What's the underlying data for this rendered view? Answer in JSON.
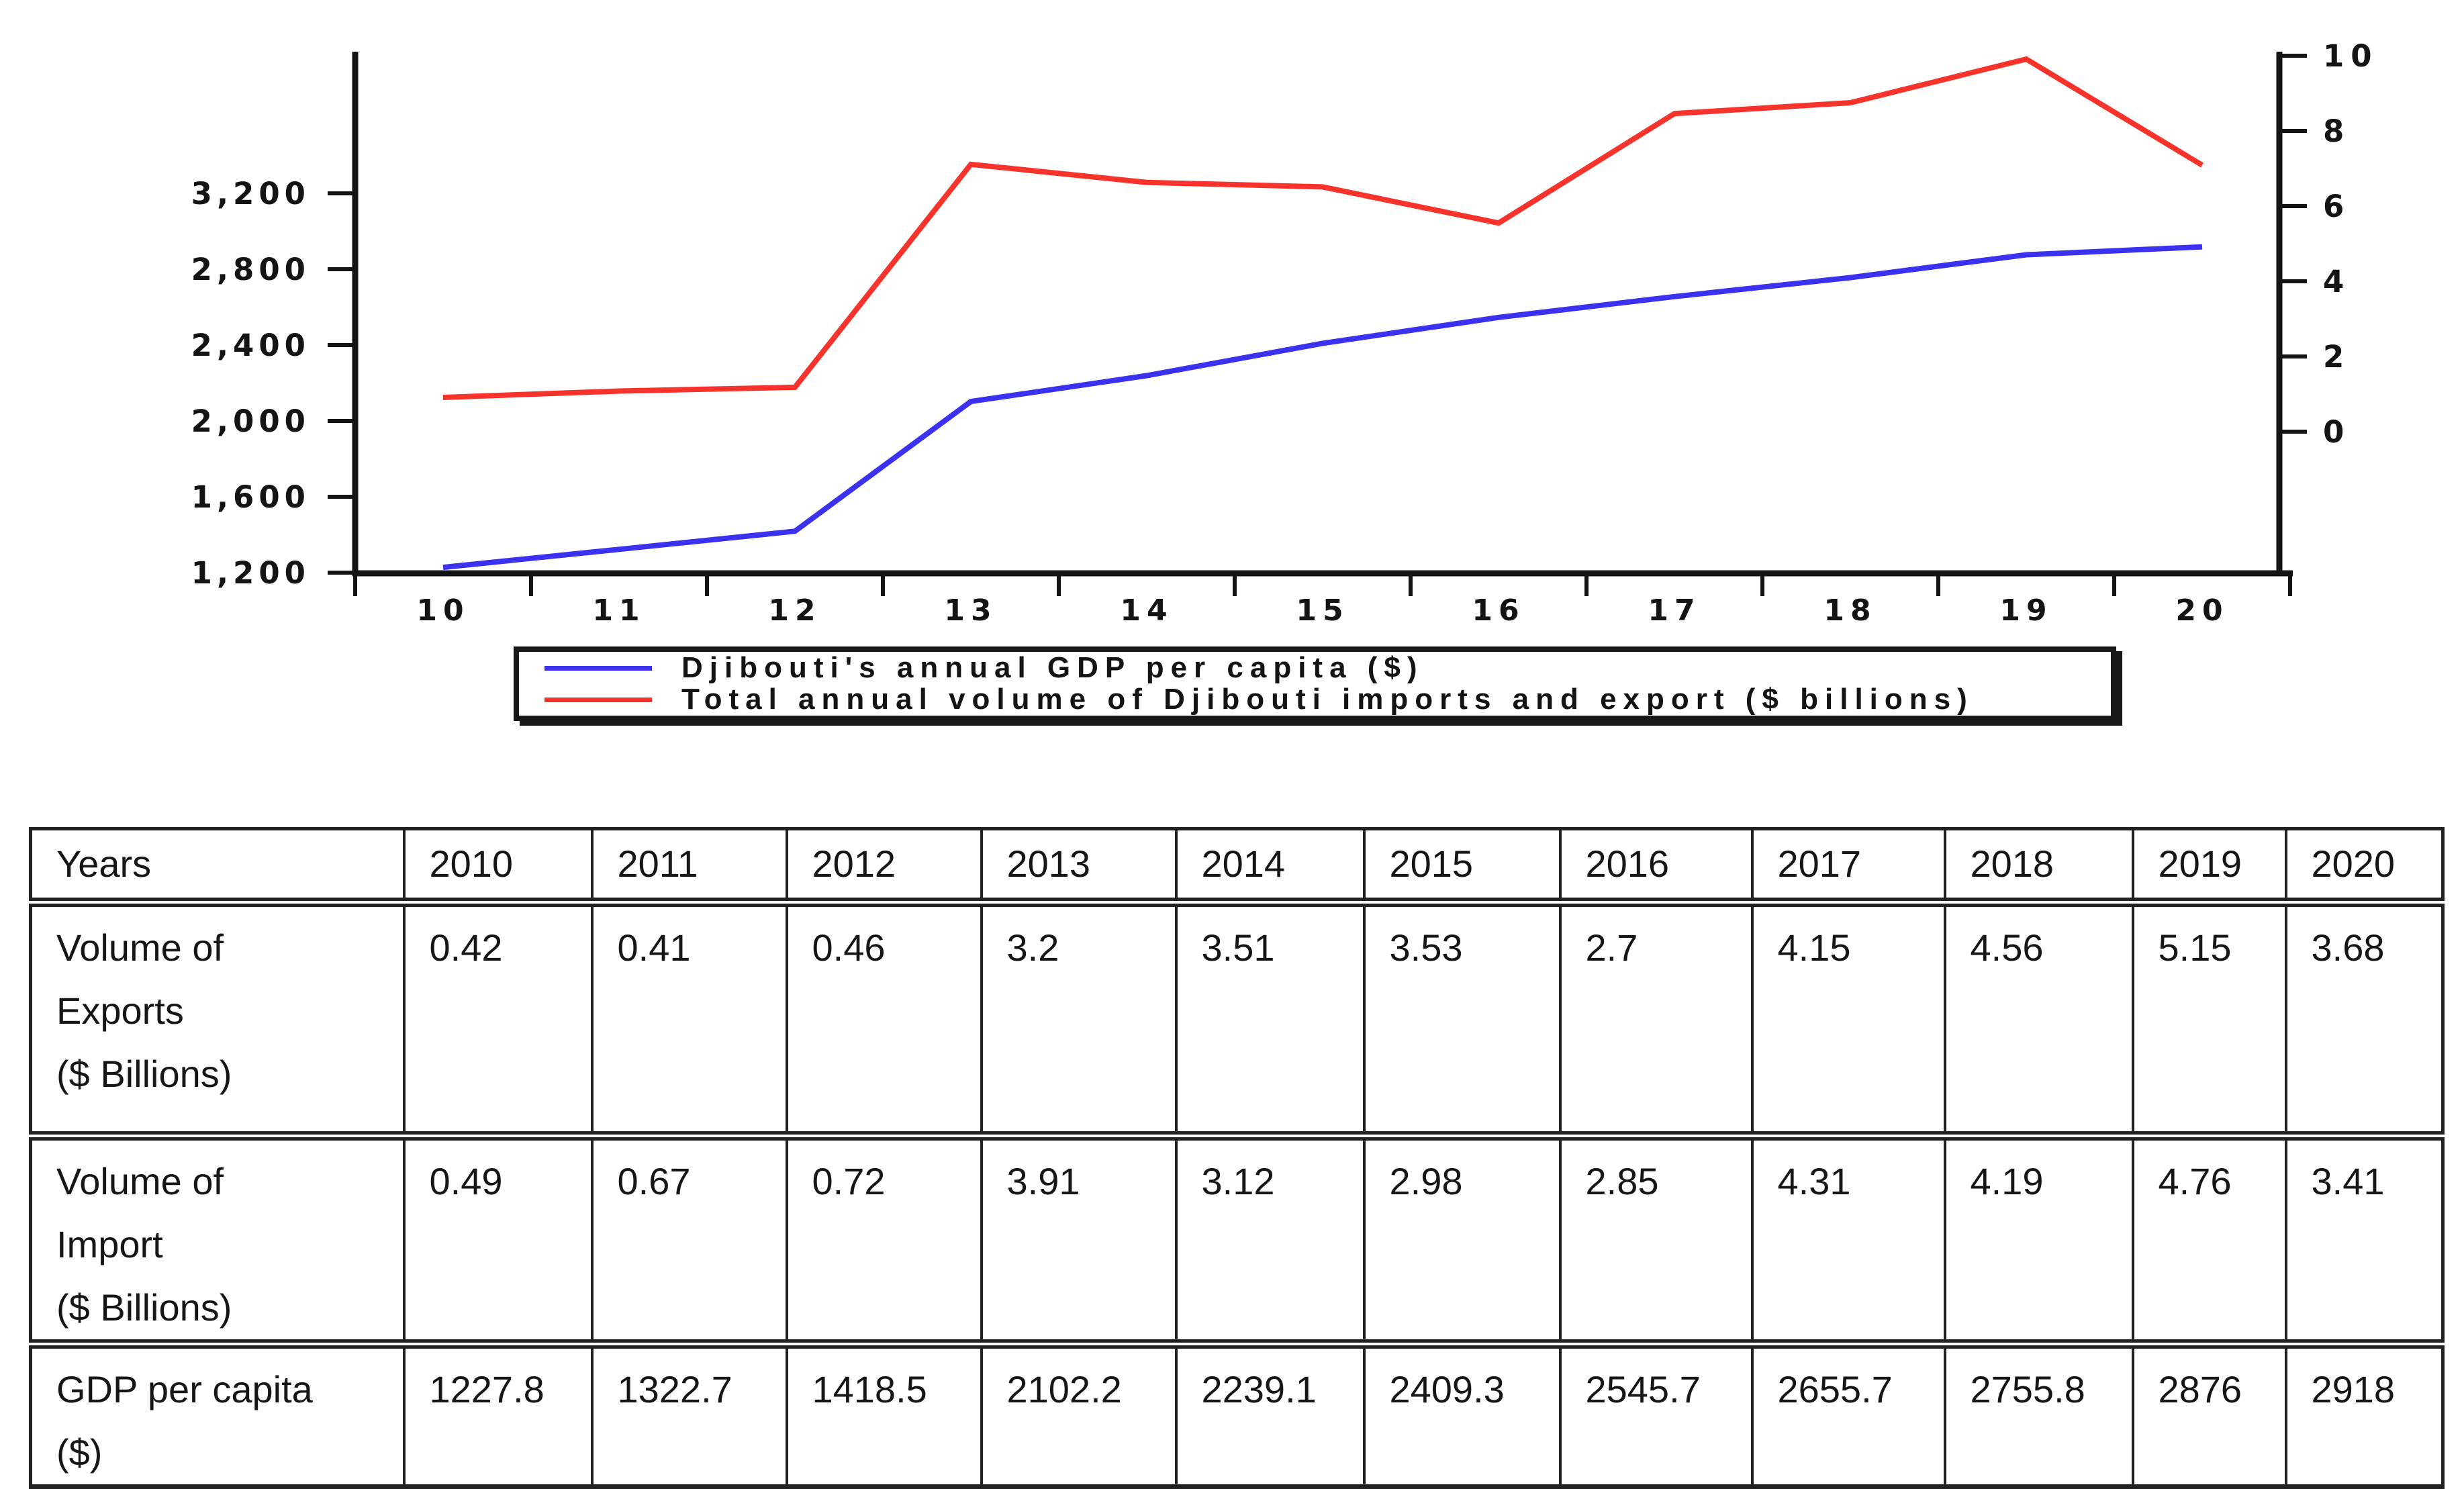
{
  "page": {
    "background": "#ffffff"
  },
  "chart_data": {
    "type": "line",
    "title": "",
    "x": [
      2010,
      2011,
      2012,
      2013,
      2014,
      2015,
      2016,
      2017,
      2018,
      2019,
      2020
    ],
    "x_tick_labels": [
      "10",
      "11",
      "12",
      "13",
      "14",
      "15",
      "16",
      "17",
      "18",
      "19",
      "20"
    ],
    "series": [
      {
        "name": "Djibouti's annual GDP per capita ($)",
        "axis": "left",
        "color": "#3a31f1",
        "values": [
          1227.8,
          1322.7,
          1418.5,
          2102.2,
          2239.1,
          2409.3,
          2545.7,
          2655.7,
          2755.8,
          2876,
          2918
        ]
      },
      {
        "name": "Total annual volume of Djibouti imports and export ($ billions)",
        "axis": "right",
        "color": "#f8332c",
        "values": [
          0.91,
          1.08,
          1.18,
          7.11,
          6.63,
          6.51,
          5.55,
          8.46,
          8.75,
          9.91,
          7.09
        ]
      }
    ],
    "left_axis": {
      "tick_labels": [
        "1,200",
        "1,600",
        "2,000",
        "2,400",
        "2,800",
        "3,200"
      ],
      "tick_values": [
        1200,
        1600,
        2000,
        2400,
        2800,
        3200
      ],
      "range": [
        1200,
        3200
      ]
    },
    "right_axis": {
      "tick_labels": [
        "0",
        "2",
        "4",
        "6",
        "8",
        "10"
      ],
      "tick_values": [
        0,
        2,
        4,
        6,
        8,
        10
      ],
      "range": [
        0,
        10
      ]
    },
    "legend_position": "bottom-center",
    "grid": false,
    "axis_color": "#141414"
  },
  "table": {
    "columns": [
      "Years",
      "2010",
      "2011",
      "2012",
      "2013",
      "2014",
      "2015",
      "2016",
      "2017",
      "2018",
      "2019",
      "2020"
    ],
    "rows": [
      {
        "label_lines": [
          "Volume of",
          "Exports",
          "($ Billions)"
        ],
        "values": [
          "0.42",
          "0.41",
          "0.46",
          "3.2",
          "3.51",
          "3.53",
          "2.7",
          "4.15",
          "4.56",
          "5.15",
          "3.68"
        ]
      },
      {
        "label_lines": [
          "Volume of",
          "Import",
          "($ Billions)"
        ],
        "values": [
          "0.49",
          "0.67",
          "0.72",
          "3.91",
          "3.12",
          "2.98",
          "2.85",
          "4.31",
          "4.19",
          "4.76",
          "3.41"
        ]
      },
      {
        "label_lines": [
          "GDP per capita",
          "($)"
        ],
        "values": [
          "1227.8",
          "1322.7",
          "1418.5",
          "2102.2",
          "2239.1",
          "2409.3",
          "2545.7",
          "2655.7",
          "2755.8",
          "2876",
          "2918"
        ]
      }
    ]
  }
}
